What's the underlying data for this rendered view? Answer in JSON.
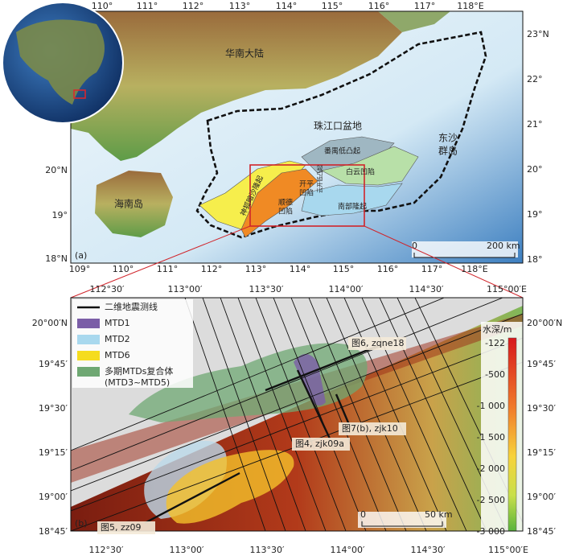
{
  "panel_a": {
    "label": "(a)",
    "lon_top": [
      "110°",
      "111°",
      "112°",
      "113°",
      "114°",
      "115°",
      "116°",
      "117°",
      "118°E"
    ],
    "lon_bottom": [
      "109°",
      "110°",
      "111°",
      "112°",
      "113°",
      "114°",
      "115°",
      "116°",
      "117°",
      "118°E"
    ],
    "lat_left": [
      "20°N",
      "19°",
      "18°N"
    ],
    "lat_right": [
      "23°N",
      "22°",
      "21°",
      "20°",
      "19°",
      "18°"
    ],
    "places": {
      "mainland": "华南大陆",
      "basin": "珠江口盆地",
      "dongsha": [
        "东沙",
        "群岛"
      ],
      "hainan": "海南岛",
      "panyu": "番禺低凸起",
      "baiyun": "白云凹陷",
      "shenhu": "神狐暗沙隆起",
      "kaiping": [
        "开平",
        "凹陷"
      ],
      "shunde": [
        "顺德",
        "凹陷"
      ],
      "southern": "南部隆起",
      "yunkai": "云开低凸起"
    },
    "scale": [
      "0",
      "200 km"
    ]
  },
  "panel_b": {
    "label": "(b)",
    "lon_top": [
      "112°30′",
      "113°00′",
      "113°30′",
      "114°00′",
      "114°30′",
      "115°00′E"
    ],
    "lon_bottom": [
      "112°30′",
      "113°00′",
      "113°30′",
      "114°00′",
      "114°30′",
      "115°00′E"
    ],
    "lat_left": [
      "20°00′N",
      "19°45′",
      "19°30′",
      "19°15′",
      "19°00′",
      "18°45′"
    ],
    "lat_right": [
      "20°00′N",
      "19°45′",
      "19°30′",
      "19°15′",
      "19°00′",
      "18°45′"
    ],
    "legend": [
      {
        "label": "二维地震测线",
        "color": "#111111"
      },
      {
        "label": "MTD1",
        "color": "#7b5ea7"
      },
      {
        "label": "MTD2",
        "color": "#a8d8ee"
      },
      {
        "label": "MTD6",
        "color": "#f5dc1e"
      },
      {
        "label": [
          "多期MTDs复合体",
          "(MTD3~MTD5)"
        ],
        "color": "#6fa873"
      }
    ],
    "profiles": [
      "图6, zqne18",
      "图7(b), zjk10",
      "图4, zjk09a",
      "图5, zz09"
    ],
    "colorbar": {
      "title": "水深/m",
      "ticks": [
        "-122",
        "-500",
        "-1 000",
        "-1 500",
        "-2 000",
        "-2 500",
        "-3 000"
      ]
    },
    "scale": [
      "0",
      "50 km"
    ]
  }
}
